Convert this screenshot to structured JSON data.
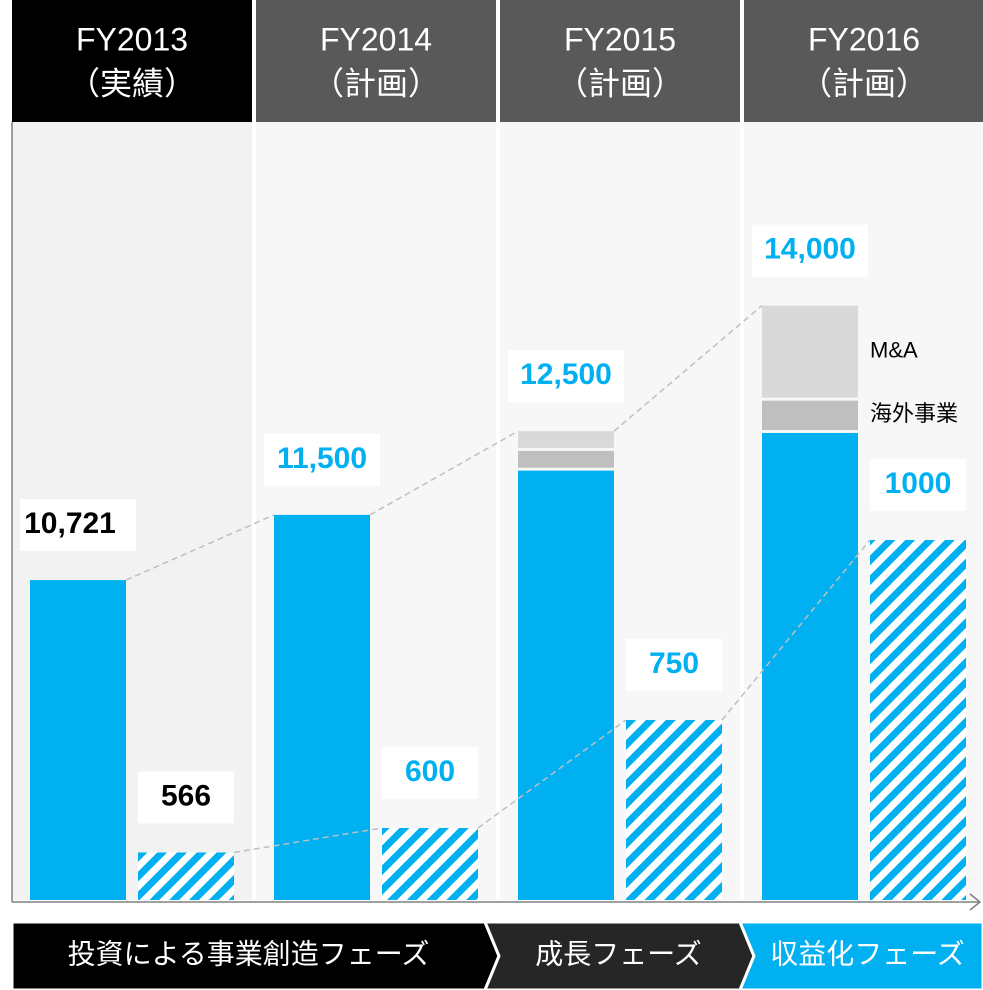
{
  "chart_data": {
    "type": "bar",
    "categories": [
      "FY2013",
      "FY2014",
      "FY2015",
      "FY2016"
    ],
    "category_sublabels": [
      "（実績）",
      "（計画）",
      "（計画）",
      "（計画）"
    ],
    "header_colors": [
      "#000000",
      "#595959",
      "#595959",
      "#595959"
    ],
    "label_colors": [
      "#000000",
      "#00b0f0",
      "#00b0f0",
      "#00b0f0"
    ],
    "ylim": [
      6900,
      15500
    ],
    "y2lim": [
      500,
      1500
    ],
    "series": [
      {
        "color": "#00b0f0",
        "values": [
          10721,
          11500,
          12500,
          14000
        ],
        "value_labels": [
          "10,721",
          "11,500",
          "12,500",
          "14,000"
        ]
      },
      {
        "color": "#00b0f0",
        "axis": "y2",
        "hatch": true,
        "values": [
          566,
          600,
          750,
          1000
        ]
      }
    ],
    "segments": [
      {
        "name": "M&A",
        "color": "#d9d9d9",
        "values": [
          null,
          null,
          200,
          1100
        ]
      },
      {
        "name": "海外事業",
        "color": "#bfbfbf",
        "values": [
          null,
          null,
          200,
          350
        ]
      }
    ],
    "phases": [
      {
        "label": "投資による事業創造フェーズ",
        "color": "#000000"
      },
      {
        "label": "成長フェーズ",
        "color": "#262626"
      },
      {
        "label": "収益化フェーズ",
        "color": "#00b0f0"
      }
    ]
  }
}
